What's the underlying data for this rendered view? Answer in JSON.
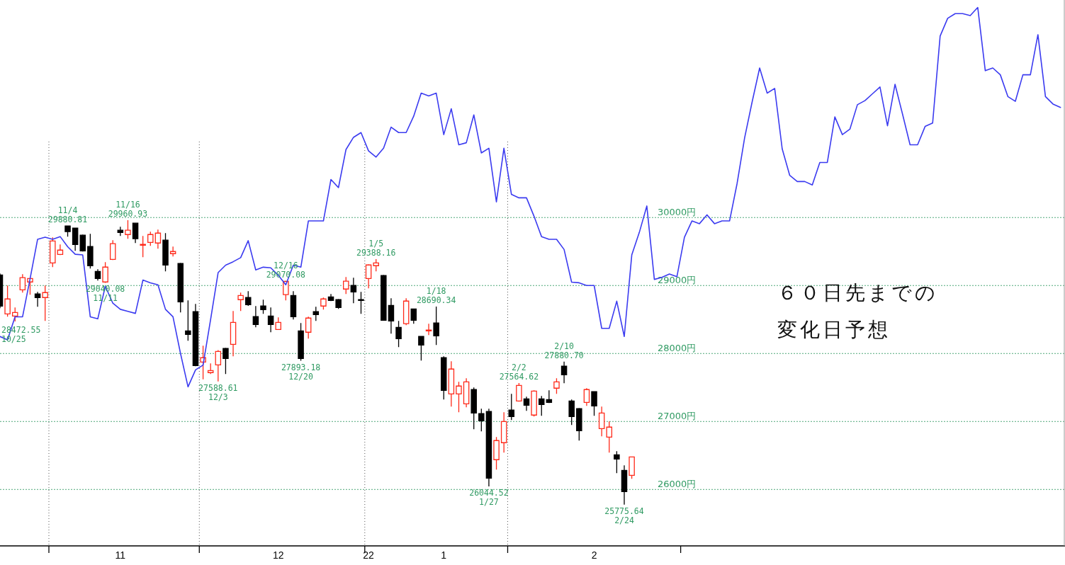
{
  "chart_data": {
    "type": "candlestick",
    "categories": [
      null,
      null,
      null,
      null,
      null,
      null,
      null,
      null,
      null,
      null,
      null,
      null,
      null,
      null,
      null,
      null,
      "11",
      null,
      null,
      null,
      null,
      null,
      null,
      null,
      null,
      null,
      null,
      null,
      null,
      null,
      null,
      null,
      null,
      null,
      null,
      null,
      null,
      "12",
      null,
      null,
      null,
      null,
      null,
      null,
      null,
      null,
      null,
      null,
      null,
      "22",
      null,
      null,
      null,
      null,
      null,
      null,
      null,
      null,
      null,
      "1",
      null,
      null,
      null,
      null,
      null,
      null,
      null,
      null,
      null,
      null,
      null,
      null,
      null,
      null,
      null,
      null,
      null,
      null,
      null,
      "2",
      null,
      null,
      null,
      null,
      null,
      null,
      null,
      null,
      null,
      null,
      null,
      null,
      null,
      null,
      null,
      null,
      null,
      null,
      null,
      null,
      null,
      null,
      null,
      null,
      null,
      null,
      null,
      null,
      null,
      null,
      null,
      null,
      null,
      null,
      null,
      null,
      null,
      null,
      null,
      null,
      null,
      null,
      null,
      null,
      null,
      null,
      null,
      null,
      null,
      null,
      null,
      null,
      null,
      null,
      null,
      null,
      null,
      null,
      null,
      null,
      null,
      null
    ],
    "ohlc": [
      [
        29156,
        29177,
        28667,
        28698
      ],
      [
        28583,
        29000,
        28542,
        28802
      ],
      [
        28552,
        28677,
        28472.55,
        28604
      ],
      [
        28937,
        29167,
        28896,
        29115
      ],
      [
        29052,
        29115,
        28865,
        29104
      ],
      [
        28875,
        28906,
        28687,
        28823
      ],
      [
        28823,
        29000,
        28479,
        28896
      ],
      [
        29333,
        29708,
        29271,
        29656
      ],
      [
        29458,
        29604,
        29448,
        29521
      ],
      [
        29875,
        29880.81,
        29719,
        29792
      ],
      [
        29844,
        29850,
        29510,
        29604
      ],
      [
        29740,
        29750,
        29500,
        29510
      ],
      [
        29573,
        29760,
        29250,
        29292
      ],
      [
        29208,
        29240,
        29073,
        29104
      ],
      [
        29052,
        29344,
        29040.08,
        29271
      ],
      [
        29385,
        29667,
        29375,
        29615
      ],
      [
        29813,
        29865,
        29729,
        29781
      ],
      [
        29750,
        29960.93,
        29688,
        29813
      ],
      [
        29917,
        29925,
        29625,
        29688
      ],
      [
        29594,
        29729,
        29417,
        29604
      ],
      [
        29635,
        29792,
        29583,
        29750
      ],
      [
        29625,
        29823,
        29542,
        29771
      ],
      [
        29667,
        29771,
        29208,
        29302
      ],
      [
        29469,
        29573,
        29427,
        29500
      ],
      [
        29323,
        29333,
        28604,
        28760
      ],
      [
        28333,
        28781,
        28187,
        28281
      ],
      [
        28615,
        28729,
        27813,
        27823
      ],
      [
        27875,
        28115,
        27620,
        27938
      ],
      [
        27719,
        27854,
        27698,
        27750
      ],
      [
        27833,
        28050,
        27588.61,
        28031
      ],
      [
        28073,
        28083,
        27698,
        27927
      ],
      [
        28135,
        28625,
        27958,
        28458
      ],
      [
        28792,
        28896,
        28625,
        28854
      ],
      [
        28823,
        28917,
        28700,
        28719
      ],
      [
        28542,
        28698,
        28385,
        28427
      ],
      [
        28698,
        28792,
        28583,
        28646
      ],
      [
        28552,
        28677,
        28313,
        28427
      ],
      [
        28354,
        28531,
        28354,
        28458
      ],
      [
        28865,
        29070.08,
        28781,
        29060
      ],
      [
        28854,
        28917,
        28500,
        28542
      ],
      [
        28333,
        28448,
        27893.18,
        27927
      ],
      [
        28313,
        28542,
        28219,
        28521
      ],
      [
        28615,
        28688,
        28479,
        28573
      ],
      [
        28698,
        28823,
        28646,
        28802
      ],
      [
        28833,
        28875,
        28770,
        28781
      ],
      [
        28792,
        28802,
        28656,
        28677
      ],
      [
        28948,
        29125,
        28875,
        29063
      ],
      [
        29000,
        29115,
        28740,
        28906
      ],
      [
        28792,
        28906,
        28583,
        28781
      ],
      [
        29104,
        29313,
        28958,
        29302
      ],
      [
        29292,
        29388.16,
        29208,
        29333
      ],
      [
        29146,
        29156,
        28490,
        28490
      ],
      [
        28708,
        28813,
        28292,
        28479
      ],
      [
        28385,
        28479,
        28094,
        28219
      ],
      [
        28438,
        28813,
        28417,
        28771
      ],
      [
        28656,
        28656,
        28438,
        28490
      ],
      [
        28250,
        28250,
        27896,
        28125
      ],
      [
        28333,
        28438,
        28271,
        28344
      ],
      [
        28448,
        28690.34,
        28125,
        28260
      ],
      [
        27938,
        27958,
        27323,
        27458
      ],
      [
        27406,
        27885,
        27219,
        27771
      ],
      [
        27406,
        27583,
        27135,
        27521
      ],
      [
        27260,
        27635,
        27208,
        27583
      ],
      [
        27469,
        27500,
        26885,
        27125
      ],
      [
        27115,
        27188,
        26854,
        27010
      ],
      [
        27146,
        27188,
        26044.52,
        26167
      ],
      [
        26438,
        26771,
        26292,
        26719
      ],
      [
        26688,
        27135,
        26542,
        27000
      ],
      [
        27167,
        27406,
        27021,
        27073
      ],
      [
        27302,
        27564.62,
        27292,
        27531
      ],
      [
        27333,
        27365,
        27156,
        27240
      ],
      [
        27094,
        27458,
        27073,
        27448
      ],
      [
        27333,
        27375,
        27083,
        27250
      ],
      [
        27323,
        27458,
        27270,
        27281
      ],
      [
        27490,
        27635,
        27406,
        27583
      ],
      [
        27813,
        27880.7,
        27563,
        27688
      ],
      [
        27302,
        27323,
        26948,
        27073
      ],
      [
        27188,
        27198,
        26719,
        26865
      ],
      [
        27281,
        27490,
        27229,
        27469
      ],
      [
        27438,
        27438,
        27083,
        27229
      ],
      [
        26896,
        27219,
        26781,
        27125
      ],
      [
        26771,
        27000,
        26542,
        26917
      ],
      [
        26510,
        26563,
        26240,
        26448
      ],
      [
        26281,
        26354,
        25775.64,
        25969
      ],
      [
        26208,
        26479,
        26156,
        26479
      ],
      null,
      null,
      null,
      null,
      null,
      null,
      null,
      null,
      null,
      null,
      null,
      null,
      null,
      null,
      null,
      null,
      null,
      null,
      null,
      null,
      null,
      null,
      null,
      null,
      null,
      null,
      null,
      null,
      null,
      null,
      null,
      null,
      null,
      null,
      null,
      null,
      null,
      null,
      null,
      null,
      null,
      null,
      null,
      null,
      null,
      null,
      null,
      null,
      null,
      null,
      null,
      null,
      null,
      null,
      null,
      null,
      null
    ],
    "series": [
      {
        "type": "line",
        "color": "#3b3bf0",
        "values": [
          28250,
          28200,
          28540,
          28540,
          29100,
          29680,
          29710,
          29680,
          29720,
          29570,
          29460,
          29450,
          28540,
          28510,
          28990,
          28740,
          28650,
          28620,
          28590,
          29080,
          29040,
          29010,
          28650,
          28540,
          28000,
          27510,
          27760,
          27830,
          28500,
          29190,
          29300,
          29350,
          29410,
          29660,
          29230,
          29270,
          29260,
          29150,
          29010,
          29300,
          29270,
          29950,
          29950,
          29950,
          30560,
          30440,
          31000,
          31180,
          31250,
          30980,
          30890,
          31020,
          31330,
          31250,
          31250,
          31490,
          31830,
          31790,
          31830,
          31220,
          31600,
          31070,
          31100,
          31510,
          30950,
          31020,
          30230,
          31020,
          30340,
          30290,
          30290,
          30020,
          29720,
          29680,
          29680,
          29530,
          29050,
          29040,
          29000,
          29000,
          28370,
          28370,
          28770,
          28250,
          29450,
          29780,
          30170,
          29090,
          29120,
          29170,
          29130,
          29710,
          29950,
          29910,
          30040,
          29910,
          29950,
          29950,
          30500,
          31170,
          31700,
          32200,
          31830,
          31900,
          31010,
          30620,
          30530,
          30530,
          30480,
          30810,
          30810,
          31480,
          31220,
          31300,
          31660,
          31720,
          31820,
          31920,
          31350,
          31960,
          31520,
          31070,
          31070,
          31340,
          31390,
          32670,
          32930,
          33000,
          33000,
          32970,
          33090,
          32160,
          32200,
          32100,
          31780,
          31710,
          32100,
          32100,
          32690,
          31780,
          31670,
          31620
        ]
      }
    ],
    "ylim": [
      25170,
      33200
    ],
    "yticks": [
      {
        "value": 26000,
        "label": "26000円"
      },
      {
        "value": 27000,
        "label": "27000円"
      },
      {
        "value": 28000,
        "label": "28000円"
      },
      {
        "value": 29000,
        "label": "29000円"
      },
      {
        "value": 30000,
        "label": "30000円"
      }
    ],
    "grid": "y",
    "annotations": [
      "28472.55\n10/25",
      {
        "text": "11/4\n29880.81",
        "y": 29880.81
      },
      {
        "text": "29040.08\n11/11",
        "y": 29040.08
      },
      {
        "text": "11/16\n29960.93",
        "y": 29960.93
      },
      {
        "text": "27588.61\n12/3",
        "y": 27588.61
      },
      {
        "text": "12/16\n29070.08",
        "y": 29070.08
      },
      {
        "text": "27893.18\n12/20",
        "y": 27893.18
      },
      {
        "text": "1/5\n29388.16",
        "y": 29388.16
      },
      {
        "text": "1/18\n28690.34",
        "y": 28690.34
      },
      {
        "text": "26044.52\n1/27",
        "y": 26044.52
      },
      {
        "text": "2/2\n27564.62",
        "y": 27564.62
      },
      {
        "text": "2/10\n27880.70",
        "y": 27880.7
      },
      {
        "text": "25775.64\n2/24",
        "y": 25775.64
      },
      "６０日先までの",
      "変化日予想"
    ]
  }
}
